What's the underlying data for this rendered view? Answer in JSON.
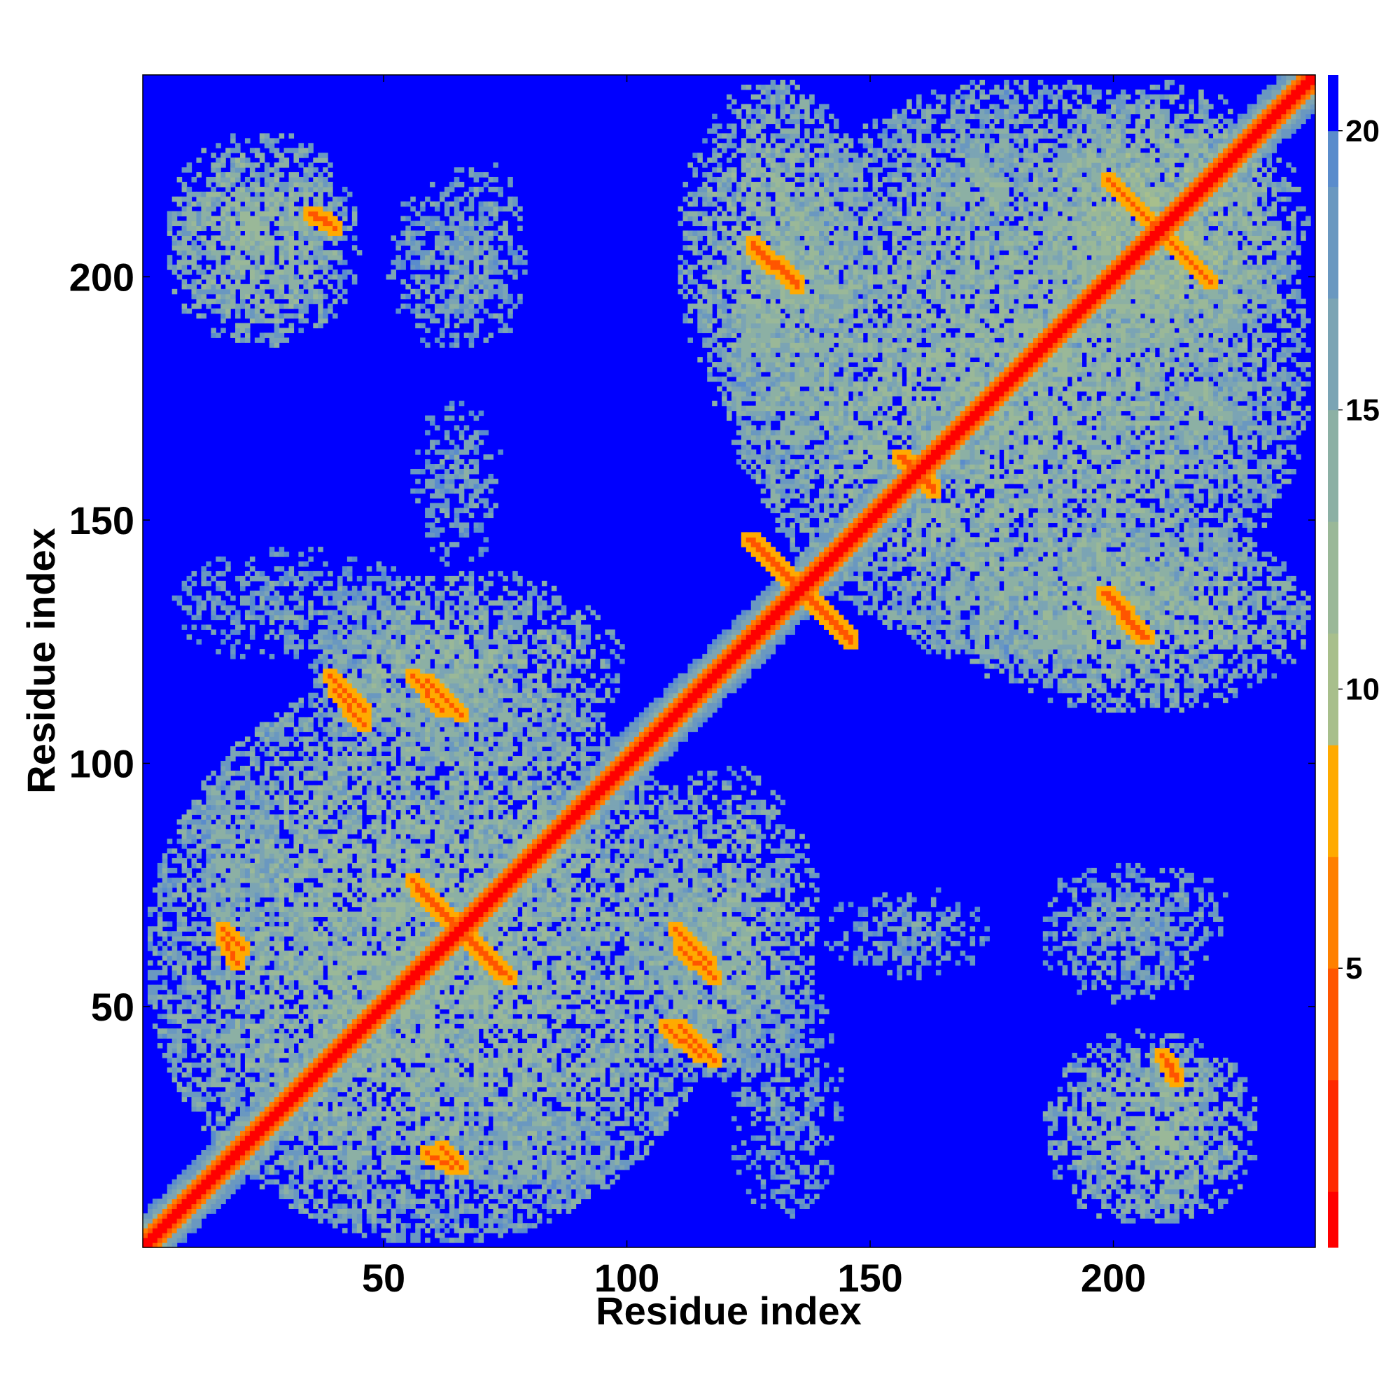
{
  "chart_data": {
    "type": "heatmap",
    "title": "",
    "xlabel": "Residue index",
    "ylabel": "Residue index",
    "xlim": [
      1,
      241
    ],
    "ylim": [
      1,
      241
    ],
    "n_residues": 241,
    "x_ticks": [
      {
        "value": 50,
        "label": "50"
      },
      {
        "value": 100,
        "label": "100"
      },
      {
        "value": 150,
        "label": "150"
      },
      {
        "value": 200,
        "label": "200"
      }
    ],
    "y_ticks": [
      {
        "value": 50,
        "label": "50"
      },
      {
        "value": 100,
        "label": "100"
      },
      {
        "value": 150,
        "label": "150"
      },
      {
        "value": 200,
        "label": "200"
      }
    ],
    "colorbar": {
      "range": [
        0,
        21
      ],
      "ticks": [
        {
          "value": 5,
          "label": "5"
        },
        {
          "value": 10,
          "label": "10"
        },
        {
          "value": 15,
          "label": "15"
        },
        {
          "value": 20,
          "label": "20"
        }
      ],
      "levels": [
        {
          "min": 0,
          "max": 1,
          "color": "#ff0000"
        },
        {
          "min": 1,
          "max": 3,
          "color": "#ff2a00"
        },
        {
          "min": 3,
          "max": 5,
          "color": "#ff5500"
        },
        {
          "min": 5,
          "max": 7,
          "color": "#ff8000"
        },
        {
          "min": 7,
          "max": 9,
          "color": "#ffaa00"
        },
        {
          "min": 9,
          "max": 11,
          "color": "#a8bf8c"
        },
        {
          "min": 11,
          "max": 13,
          "color": "#9ab898"
        },
        {
          "min": 13,
          "max": 15,
          "color": "#8cb0a4"
        },
        {
          "min": 15,
          "max": 17,
          "color": "#7ba4b4"
        },
        {
          "min": 17,
          "max": 19,
          "color": "#6a98c0"
        },
        {
          "min": 19,
          "max": 20,
          "color": "#5a8ccc"
        },
        {
          "min": 20,
          "max": 21,
          "color": "#0000ff"
        }
      ]
    },
    "background_color": "#0000ff",
    "contact_blocks": [
      {
        "x": [
          1,
          120
        ],
        "y": [
          1,
          120
        ],
        "value": 14
      },
      {
        "x": [
          121,
          241
        ],
        "y": [
          121,
          241
        ],
        "value": 14
      },
      {
        "x": [
          5,
          45
        ],
        "y": [
          185,
          225
        ],
        "value": 14
      },
      {
        "x": [
          50,
          75
        ],
        "y": [
          185,
          220
        ],
        "value": 16
      },
      {
        "x": [
          110,
          150
        ],
        "y": [
          170,
          241
        ],
        "value": 14
      },
      {
        "x": [
          160,
          180
        ],
        "y": [
          210,
          230
        ],
        "value": 16
      },
      {
        "x": [
          185,
          235
        ],
        "y": [
          180,
          241
        ],
        "value": 13
      },
      {
        "x": [
          155,
          240
        ],
        "y": [
          115,
          150
        ],
        "value": 14
      },
      {
        "x": [
          190,
          230
        ],
        "y": [
          5,
          45
        ],
        "value": 14
      },
      {
        "x": [
          185,
          225
        ],
        "y": [
          60,
          80
        ],
        "value": 16
      },
      {
        "x": [
          100,
          140
        ],
        "y": [
          35,
          100
        ],
        "value": 14
      },
      {
        "x": [
          140,
          175
        ],
        "y": [
          55,
          75
        ],
        "value": 17
      },
      {
        "x": [
          60,
          100
        ],
        "y": [
          10,
          30
        ],
        "value": 16
      },
      {
        "x": [
          35,
          80
        ],
        "y": [
          105,
          135
        ],
        "value": 15
      },
      {
        "x": [
          5,
          60
        ],
        "y": [
          120,
          145
        ],
        "value": 17
      }
    ],
    "strong_contacts": [
      {
        "x0": 40,
        "y0": 115,
        "x1": 46,
        "y1": 108
      },
      {
        "x0": 59,
        "y0": 117,
        "x1": 66,
        "y1": 110
      },
      {
        "x0": 56,
        "y0": 76,
        "x1": 74,
        "y1": 57
      },
      {
        "x0": 111,
        "y0": 62,
        "x1": 118,
        "y1": 56
      },
      {
        "x0": 111,
        "y0": 46,
        "x1": 118,
        "y1": 39
      },
      {
        "x0": 126,
        "y0": 146,
        "x1": 146,
        "y1": 125
      },
      {
        "x0": 126,
        "y0": 206,
        "x1": 135,
        "y1": 198
      },
      {
        "x0": 200,
        "y0": 219,
        "x1": 220,
        "y1": 199
      },
      {
        "x0": 199,
        "y0": 135,
        "x1": 207,
        "y1": 126
      },
      {
        "x0": 17,
        "y0": 66,
        "x1": 21,
        "y1": 62
      },
      {
        "x0": 59,
        "y0": 20,
        "x1": 64,
        "y1": 17
      },
      {
        "x0": 210,
        "y0": 40,
        "x1": 213,
        "y1": 36
      },
      {
        "x0": 156,
        "y0": 163,
        "x1": 163,
        "y1": 157
      },
      {
        "x0": 35,
        "y0": 213,
        "x1": 40,
        "y1": 210
      }
    ]
  }
}
